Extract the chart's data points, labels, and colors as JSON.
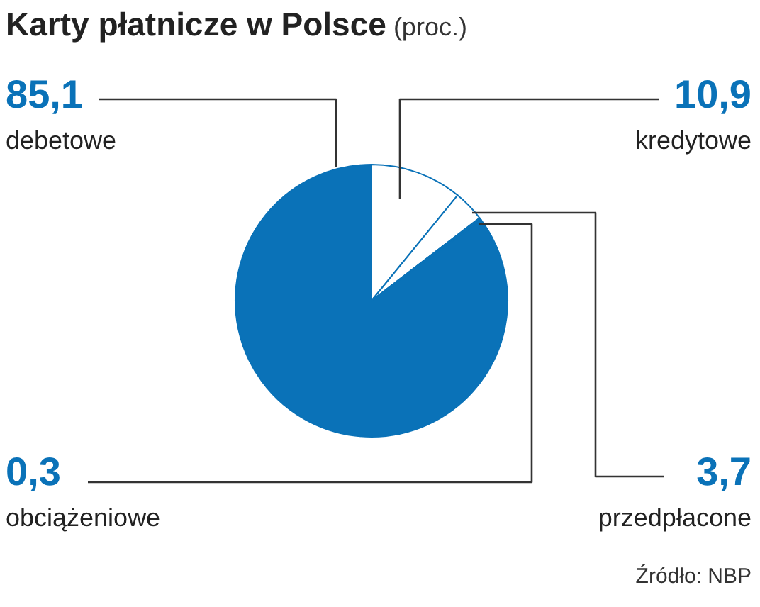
{
  "chart_data": {
    "type": "pie",
    "title": "Karty płatnicze w Polsce",
    "subtitle": "(proc.)",
    "categories": [
      "kredytowe",
      "przedpłacone",
      "obciążeniowe",
      "debetowe"
    ],
    "values": [
      10.9,
      3.7,
      0.3,
      85.1
    ],
    "colors": [
      "#ffffff",
      "#ffffff",
      "#0a72b8",
      "#0a72b8"
    ],
    "value_labels": [
      "10,9",
      "3,7",
      "0,3",
      "85,1"
    ],
    "annotations": [
      "Źródło: NBP"
    ]
  }
}
